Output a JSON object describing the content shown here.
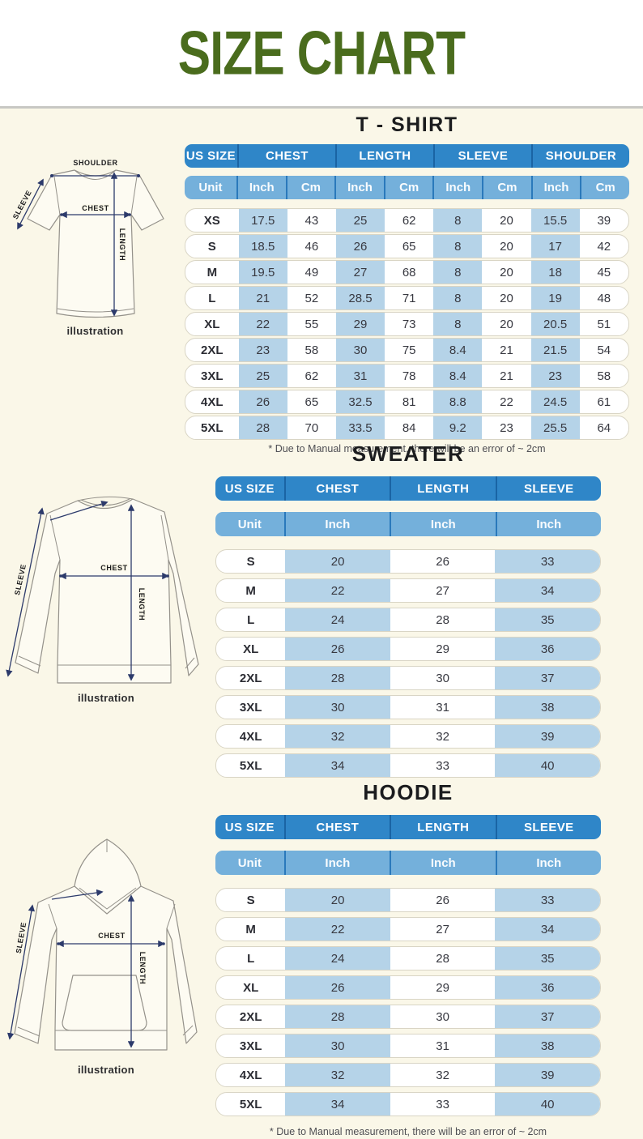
{
  "header": {
    "title": "SIZE CHART"
  },
  "illustrations": {
    "caption": "illustration",
    "tshirt": {
      "labels": {
        "shoulder": "SHOULDER",
        "sleeve": "SLEEVE",
        "chest": "CHEST",
        "length": "LENGTH"
      }
    },
    "sweater": {
      "labels": {
        "sleeve": "SLEEVE",
        "chest": "CHEST",
        "length": "LENGTH"
      }
    },
    "hoodie": {
      "labels": {
        "sleeve": "SLEEVE",
        "chest": "CHEST",
        "length": "LENGTH"
      }
    }
  },
  "tables": {
    "tshirt": {
      "title": "T - SHIRT",
      "columns": [
        "US SIZE",
        "CHEST",
        "LENGTH",
        "SLEEVE",
        "SHOULDER"
      ],
      "units": [
        "Unit",
        "Inch",
        "Cm",
        "Inch",
        "Cm",
        "Inch",
        "Cm",
        "Inch",
        "Cm"
      ],
      "rows": [
        {
          "size": "XS",
          "values": [
            "17.5",
            "43",
            "25",
            "62",
            "8",
            "20",
            "15.5",
            "39"
          ]
        },
        {
          "size": "S",
          "values": [
            "18.5",
            "46",
            "26",
            "65",
            "8",
            "20",
            "17",
            "42"
          ]
        },
        {
          "size": "M",
          "values": [
            "19.5",
            "49",
            "27",
            "68",
            "8",
            "20",
            "18",
            "45"
          ]
        },
        {
          "size": "L",
          "values": [
            "21",
            "52",
            "28.5",
            "71",
            "8",
            "20",
            "19",
            "48"
          ]
        },
        {
          "size": "XL",
          "values": [
            "22",
            "55",
            "29",
            "73",
            "8",
            "20",
            "20.5",
            "51"
          ]
        },
        {
          "size": "2XL",
          "values": [
            "23",
            "58",
            "30",
            "75",
            "8.4",
            "21",
            "21.5",
            "54"
          ]
        },
        {
          "size": "3XL",
          "values": [
            "25",
            "62",
            "31",
            "78",
            "8.4",
            "21",
            "23",
            "58"
          ]
        },
        {
          "size": "4XL",
          "values": [
            "26",
            "65",
            "32.5",
            "81",
            "8.8",
            "22",
            "24.5",
            "61"
          ]
        },
        {
          "size": "5XL",
          "values": [
            "28",
            "70",
            "33.5",
            "84",
            "9.2",
            "23",
            "25.5",
            "64"
          ]
        }
      ],
      "footnote": "* Due to Manual measurement, there will be an error of ~ 2cm"
    },
    "sweater": {
      "title": "SWEATER",
      "columns": [
        "US SIZE",
        "CHEST",
        "LENGTH",
        "SLEEVE"
      ],
      "units": [
        "Unit",
        "Inch",
        "Inch",
        "Inch"
      ],
      "rows": [
        {
          "size": "S",
          "values": [
            "20",
            "26",
            "33"
          ]
        },
        {
          "size": "M",
          "values": [
            "22",
            "27",
            "34"
          ]
        },
        {
          "size": "L",
          "values": [
            "24",
            "28",
            "35"
          ]
        },
        {
          "size": "XL",
          "values": [
            "26",
            "29",
            "36"
          ]
        },
        {
          "size": "2XL",
          "values": [
            "28",
            "30",
            "37"
          ]
        },
        {
          "size": "3XL",
          "values": [
            "30",
            "31",
            "38"
          ]
        },
        {
          "size": "4XL",
          "values": [
            "32",
            "32",
            "39"
          ]
        },
        {
          "size": "5XL",
          "values": [
            "34",
            "33",
            "40"
          ]
        }
      ]
    },
    "hoodie": {
      "title": "HOODIE",
      "columns": [
        "US SIZE",
        "CHEST",
        "LENGTH",
        "SLEEVE"
      ],
      "units": [
        "Unit",
        "Inch",
        "Inch",
        "Inch"
      ],
      "rows": [
        {
          "size": "S",
          "values": [
            "20",
            "26",
            "33"
          ]
        },
        {
          "size": "M",
          "values": [
            "22",
            "27",
            "34"
          ]
        },
        {
          "size": "L",
          "values": [
            "24",
            "28",
            "35"
          ]
        },
        {
          "size": "XL",
          "values": [
            "26",
            "29",
            "36"
          ]
        },
        {
          "size": "2XL",
          "values": [
            "28",
            "30",
            "37"
          ]
        },
        {
          "size": "3XL",
          "values": [
            "30",
            "31",
            "38"
          ]
        },
        {
          "size": "4XL",
          "values": [
            "32",
            "32",
            "39"
          ]
        },
        {
          "size": "5XL",
          "values": [
            "34",
            "33",
            "40"
          ]
        }
      ],
      "footnote": "* Due to Manual measurement, there will be an error of ~ 2cm"
    }
  },
  "colors": {
    "title_green": "#4a6c1d",
    "header_blue": "#2f86c8",
    "unit_blue": "#74b0db",
    "cell_highlight_blue": "#b5d3e8",
    "background_cream": "#faf7e8",
    "top_background": "#ffffff",
    "arrow_navy": "#2c3a6b"
  }
}
